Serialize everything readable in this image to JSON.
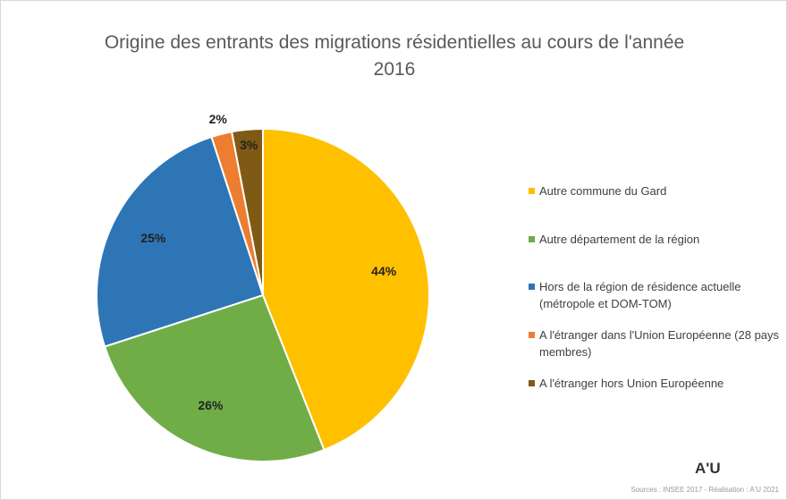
{
  "chart_data": {
    "type": "pie",
    "title": "Origine des entrants des migrations résidentielles au cours de l'année 2016",
    "categories": [
      "Autre commune du Gard",
      "Autre département de la région",
      "Hors de la région de résidence actuelle (métropole et DOM-TOM)",
      "A l'étranger dans l'Union Européenne (28 pays membres)",
      "A l'étranger hors Union Européenne"
    ],
    "values": [
      44,
      26,
      25,
      2,
      3
    ],
    "value_labels": [
      "44%",
      "26%",
      "25%",
      "2%",
      "3%"
    ],
    "colors": [
      "#ffc000",
      "#70ad47",
      "#2e75b6",
      "#ed7d31",
      "#7f5a14"
    ],
    "legend": "right",
    "logo": "A'U",
    "source": "Sources : INSEE 2017 - Réalisation : A'U 2021"
  }
}
